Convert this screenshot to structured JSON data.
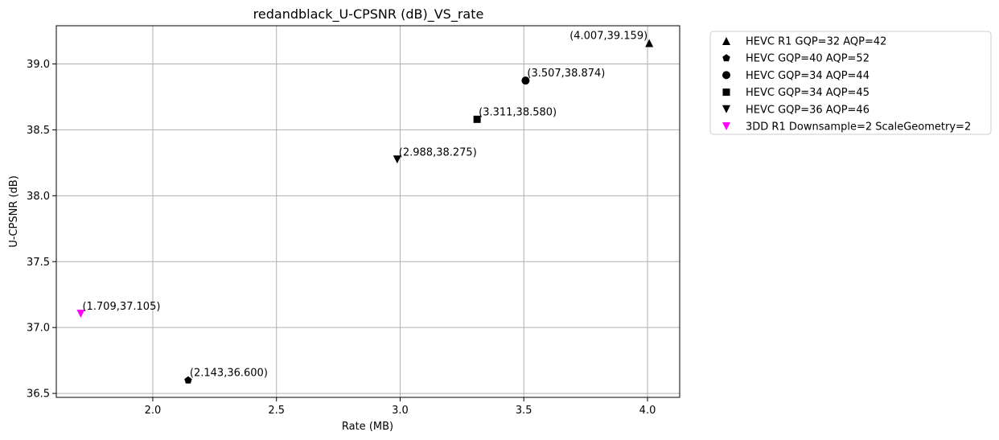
{
  "chart_data": {
    "type": "scatter",
    "title": "redandblack_U-CPSNR (dB)_VS_rate",
    "xlabel": "Rate (MB)",
    "ylabel": "U-CPSNR (dB)",
    "xlim": [
      1.61,
      4.13
    ],
    "ylim": [
      36.47,
      39.29
    ],
    "xticks": [
      2.0,
      2.5,
      3.0,
      3.5,
      4.0
    ],
    "xtick_labels": [
      "2.0",
      "2.5",
      "3.0",
      "3.5",
      "4.0"
    ],
    "yticks": [
      36.5,
      37.0,
      37.5,
      38.0,
      38.5,
      39.0
    ],
    "ytick_labels": [
      "36.5",
      "37.0",
      "37.5",
      "38.0",
      "38.5",
      "39.0"
    ],
    "grid": true,
    "legend_position": "outside-right-top",
    "series": [
      {
        "name": "HEVC R1 GQP=32 AQP=42",
        "marker": "triangle-up",
        "color": "#000000",
        "x": 4.007,
        "y": 39.159,
        "label": "(4.007,39.159)",
        "label_side": "left"
      },
      {
        "name": "HEVC GQP=40 AQP=52",
        "marker": "pentagon",
        "color": "#000000",
        "x": 2.143,
        "y": 36.6,
        "label": "(2.143,36.600)",
        "label_side": "right"
      },
      {
        "name": "HEVC GQP=34 AQP=44",
        "marker": "circle",
        "color": "#000000",
        "x": 3.507,
        "y": 38.874,
        "label": "(3.507,38.874)",
        "label_side": "right"
      },
      {
        "name": "HEVC GQP=34 AQP=45",
        "marker": "square",
        "color": "#000000",
        "x": 3.311,
        "y": 38.58,
        "label": "(3.311,38.580)",
        "label_side": "right"
      },
      {
        "name": "HEVC GQP=36 AQP=46",
        "marker": "triangle-down",
        "color": "#000000",
        "x": 2.988,
        "y": 38.275,
        "label": "(2.988,38.275)",
        "label_side": "right"
      },
      {
        "name": "3DD R1 Downsample=2 ScaleGeometry=2",
        "marker": "triangle-down",
        "color": "#ff00ff",
        "x": 1.709,
        "y": 37.105,
        "label": "(1.709,37.105)",
        "label_side": "right"
      }
    ]
  }
}
